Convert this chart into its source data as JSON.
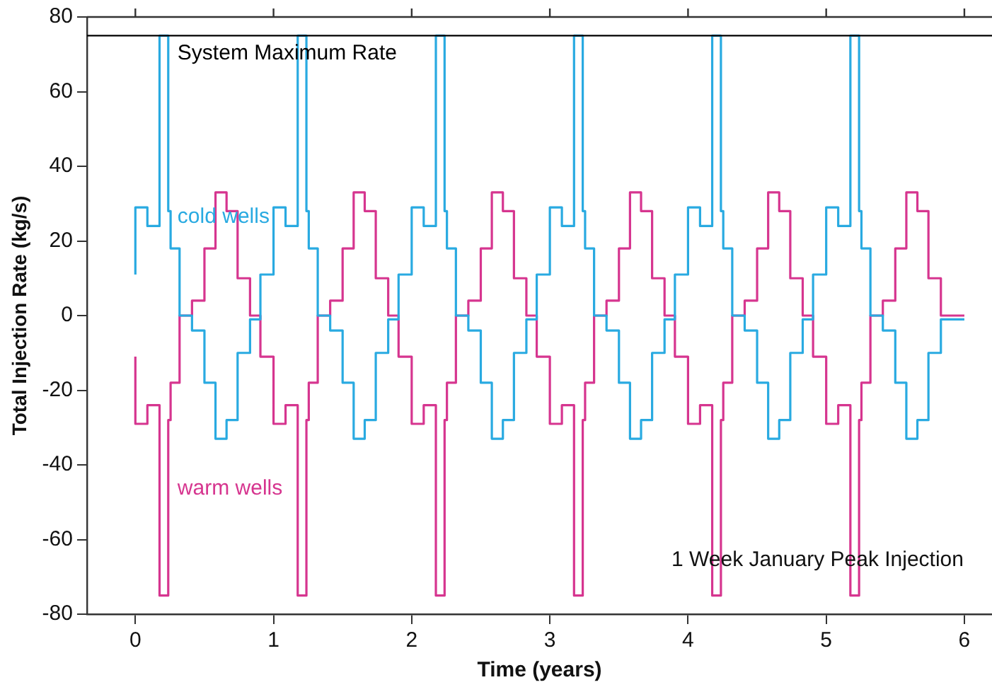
{
  "chart_data": {
    "type": "step",
    "xlabel": "Time (years)",
    "ylabel": "Total Injection Rate (kg/s)",
    "x": [
      0,
      0.087,
      0.175,
      0.238,
      0.255,
      0.32,
      0.41,
      0.5,
      0.58,
      0.66,
      0.74,
      0.83,
      0.905,
      1,
      1.087,
      1.175,
      1.238,
      1.255,
      1.32,
      1.41,
      1.5,
      1.58,
      1.66,
      1.74,
      1.83,
      1.905,
      2,
      2.087,
      2.175,
      2.238,
      2.255,
      2.32,
      2.41,
      2.5,
      2.58,
      2.66,
      2.74,
      2.83,
      2.905,
      3,
      3.087,
      3.175,
      3.238,
      3.255,
      3.32,
      3.41,
      3.5,
      3.58,
      3.66,
      3.74,
      3.83,
      3.905,
      4,
      4.087,
      4.175,
      4.238,
      4.255,
      4.32,
      4.41,
      4.5,
      4.58,
      4.66,
      4.74,
      4.83,
      4.905,
      5,
      5.087,
      5.175,
      5.238,
      5.255,
      5.32,
      5.41,
      5.5,
      5.58,
      5.66,
      5.74,
      5.83,
      5.905,
      6
    ],
    "series": [
      {
        "name": "cold wells",
        "color": "#29aae1",
        "values": [
          11,
          29,
          24,
          75,
          28,
          18,
          0,
          -4,
          -18,
          -33,
          -28,
          -10,
          -1,
          11,
          29,
          24,
          75,
          28,
          18,
          0,
          -4,
          -18,
          -33,
          -28,
          -10,
          -1,
          11,
          29,
          24,
          75,
          28,
          18,
          0,
          -4,
          -18,
          -33,
          -28,
          -10,
          -1,
          11,
          29,
          24,
          75,
          28,
          18,
          0,
          -4,
          -18,
          -33,
          -28,
          -10,
          -1,
          11,
          29,
          24,
          75,
          28,
          18,
          0,
          -4,
          -18,
          -33,
          -28,
          -10,
          -1,
          11,
          29,
          24,
          75,
          28,
          18,
          0,
          -4,
          -18,
          -33,
          -28,
          -10,
          -1,
          -1
        ]
      },
      {
        "name": "warm wells",
        "color": "#d6358f",
        "values": [
          -11,
          -29,
          -24,
          -75,
          -28,
          -18,
          0,
          4,
          18,
          33,
          28,
          10,
          0,
          -11,
          -29,
          -24,
          -75,
          -28,
          -18,
          0,
          4,
          18,
          33,
          28,
          10,
          0,
          -11,
          -29,
          -24,
          -75,
          -28,
          -18,
          0,
          4,
          18,
          33,
          28,
          10,
          0,
          -11,
          -29,
          -24,
          -75,
          -28,
          -18,
          0,
          4,
          18,
          33,
          28,
          10,
          0,
          -11,
          -29,
          -24,
          -75,
          -28,
          -18,
          0,
          4,
          18,
          33,
          28,
          10,
          0,
          -11,
          -29,
          -24,
          -75,
          -28,
          -18,
          0,
          4,
          18,
          33,
          28,
          10,
          0,
          0
        ]
      }
    ],
    "xlim": [
      -0.35,
      6.2
    ],
    "xticks": [
      0,
      1,
      2,
      3,
      4,
      5,
      6
    ],
    "ylim": [
      -80,
      80
    ],
    "yticks": [
      -80,
      -60,
      -40,
      -20,
      0,
      20,
      40,
      60,
      80
    ],
    "ref_lines": [
      {
        "axis": "y",
        "value": 75,
        "label": "System Maximum Rate",
        "color": "#000000"
      }
    ],
    "annotations": [
      "1 Week January Peak Injection"
    ],
    "grid": false,
    "legend": false,
    "marker": "none",
    "line_style": "solid"
  }
}
